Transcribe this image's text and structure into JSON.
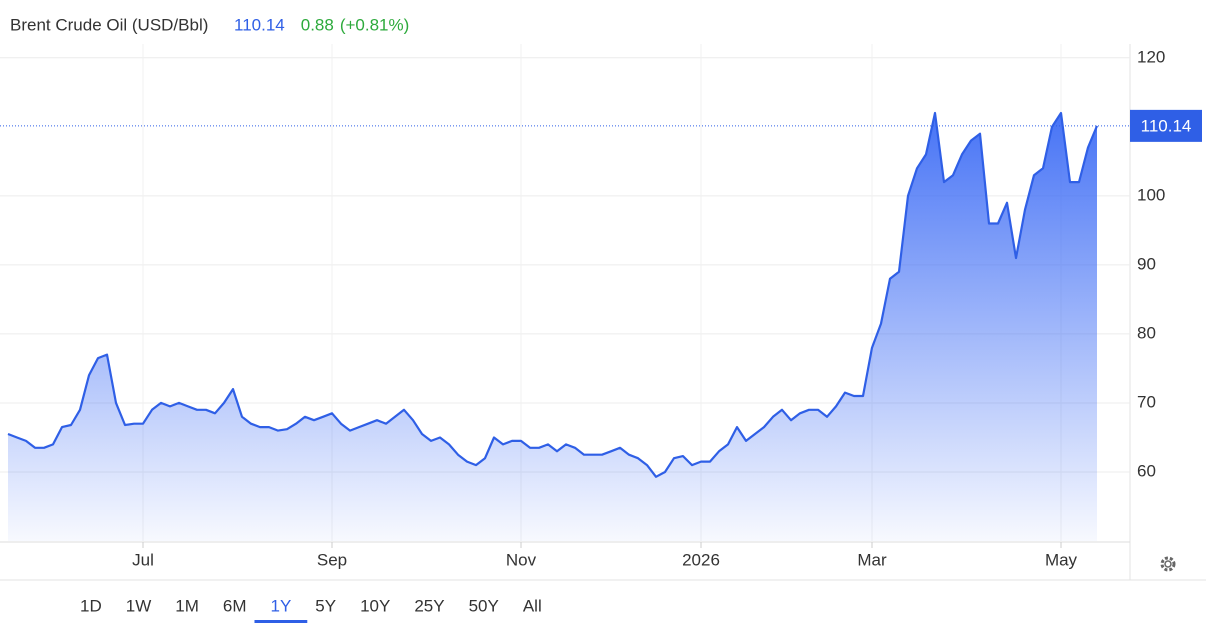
{
  "header": {
    "title": "Brent Crude Oil (USD/Bbl)",
    "price": 110.14,
    "change": 0.88,
    "change_pct": "(+0.81%)"
  },
  "chart_data": {
    "type": "area",
    "color": "#2f5fe6",
    "categories": [
      null,
      null,
      null,
      null,
      null,
      null,
      null,
      null,
      null,
      null,
      null,
      null,
      null,
      null,
      null,
      "Jul",
      null,
      null,
      null,
      null,
      null,
      null,
      null,
      null,
      null,
      null,
      null,
      null,
      null,
      null,
      null,
      null,
      null,
      null,
      null,
      null,
      "Sep",
      null,
      null,
      null,
      null,
      null,
      null,
      null,
      null,
      null,
      null,
      null,
      null,
      null,
      null,
      null,
      null,
      null,
      null,
      null,
      null,
      "Nov",
      null,
      null,
      null,
      null,
      null,
      null,
      null,
      null,
      null,
      null,
      null,
      null,
      null,
      null,
      null,
      null,
      null,
      null,
      null,
      "2026",
      null,
      null,
      null,
      null,
      null,
      null,
      null,
      null,
      null,
      null,
      null,
      null,
      null,
      null,
      null,
      null,
      null,
      null,
      "Mar",
      null,
      null,
      null,
      null,
      null,
      null,
      null,
      null,
      null,
      null,
      null,
      null,
      null,
      null,
      null,
      null,
      null,
      null,
      null,
      null,
      "May",
      null,
      null,
      null,
      null
    ],
    "values": [
      65.5,
      65,
      64.5,
      63.5,
      63.5,
      64,
      66.5,
      66.8,
      69,
      74,
      76.5,
      77,
      70,
      66.8,
      67,
      67,
      69,
      70,
      69.5,
      70,
      69.5,
      69,
      69,
      68.5,
      70,
      72,
      68,
      67,
      66.5,
      66.5,
      66,
      66.2,
      67,
      68,
      67.5,
      68,
      68.5,
      67,
      66,
      66.5,
      67,
      67.5,
      67,
      68,
      69,
      67.5,
      65.5,
      64.5,
      65,
      64,
      62.5,
      61.5,
      61,
      62,
      65,
      64,
      64.5,
      64.5,
      63.5,
      63.5,
      64,
      63,
      64,
      63.5,
      62.5,
      62.5,
      62.5,
      63,
      63.5,
      62.5,
      62,
      61,
      59.3,
      60,
      62,
      62.3,
      61,
      61.5,
      61.5,
      63,
      64,
      66.5,
      64.5,
      65.5,
      66.5,
      68,
      69,
      67.5,
      68.5,
      69,
      69,
      68,
      69.5,
      71.5,
      71,
      71,
      78,
      81.5,
      88,
      89,
      100,
      104,
      106,
      112,
      102,
      103,
      106,
      108,
      109,
      96,
      96,
      99,
      91,
      98,
      103,
      104,
      110,
      112,
      102,
      102,
      107,
      110.14
    ],
    "ylim": [
      50,
      122
    ],
    "yticks": [
      60,
      70,
      80,
      90,
      100,
      120
    ],
    "grid": true
  },
  "ranges": {
    "items": [
      "1D",
      "1W",
      "1M",
      "6M",
      "1Y",
      "5Y",
      "10Y",
      "25Y",
      "50Y",
      "All"
    ],
    "selected": "1Y"
  }
}
